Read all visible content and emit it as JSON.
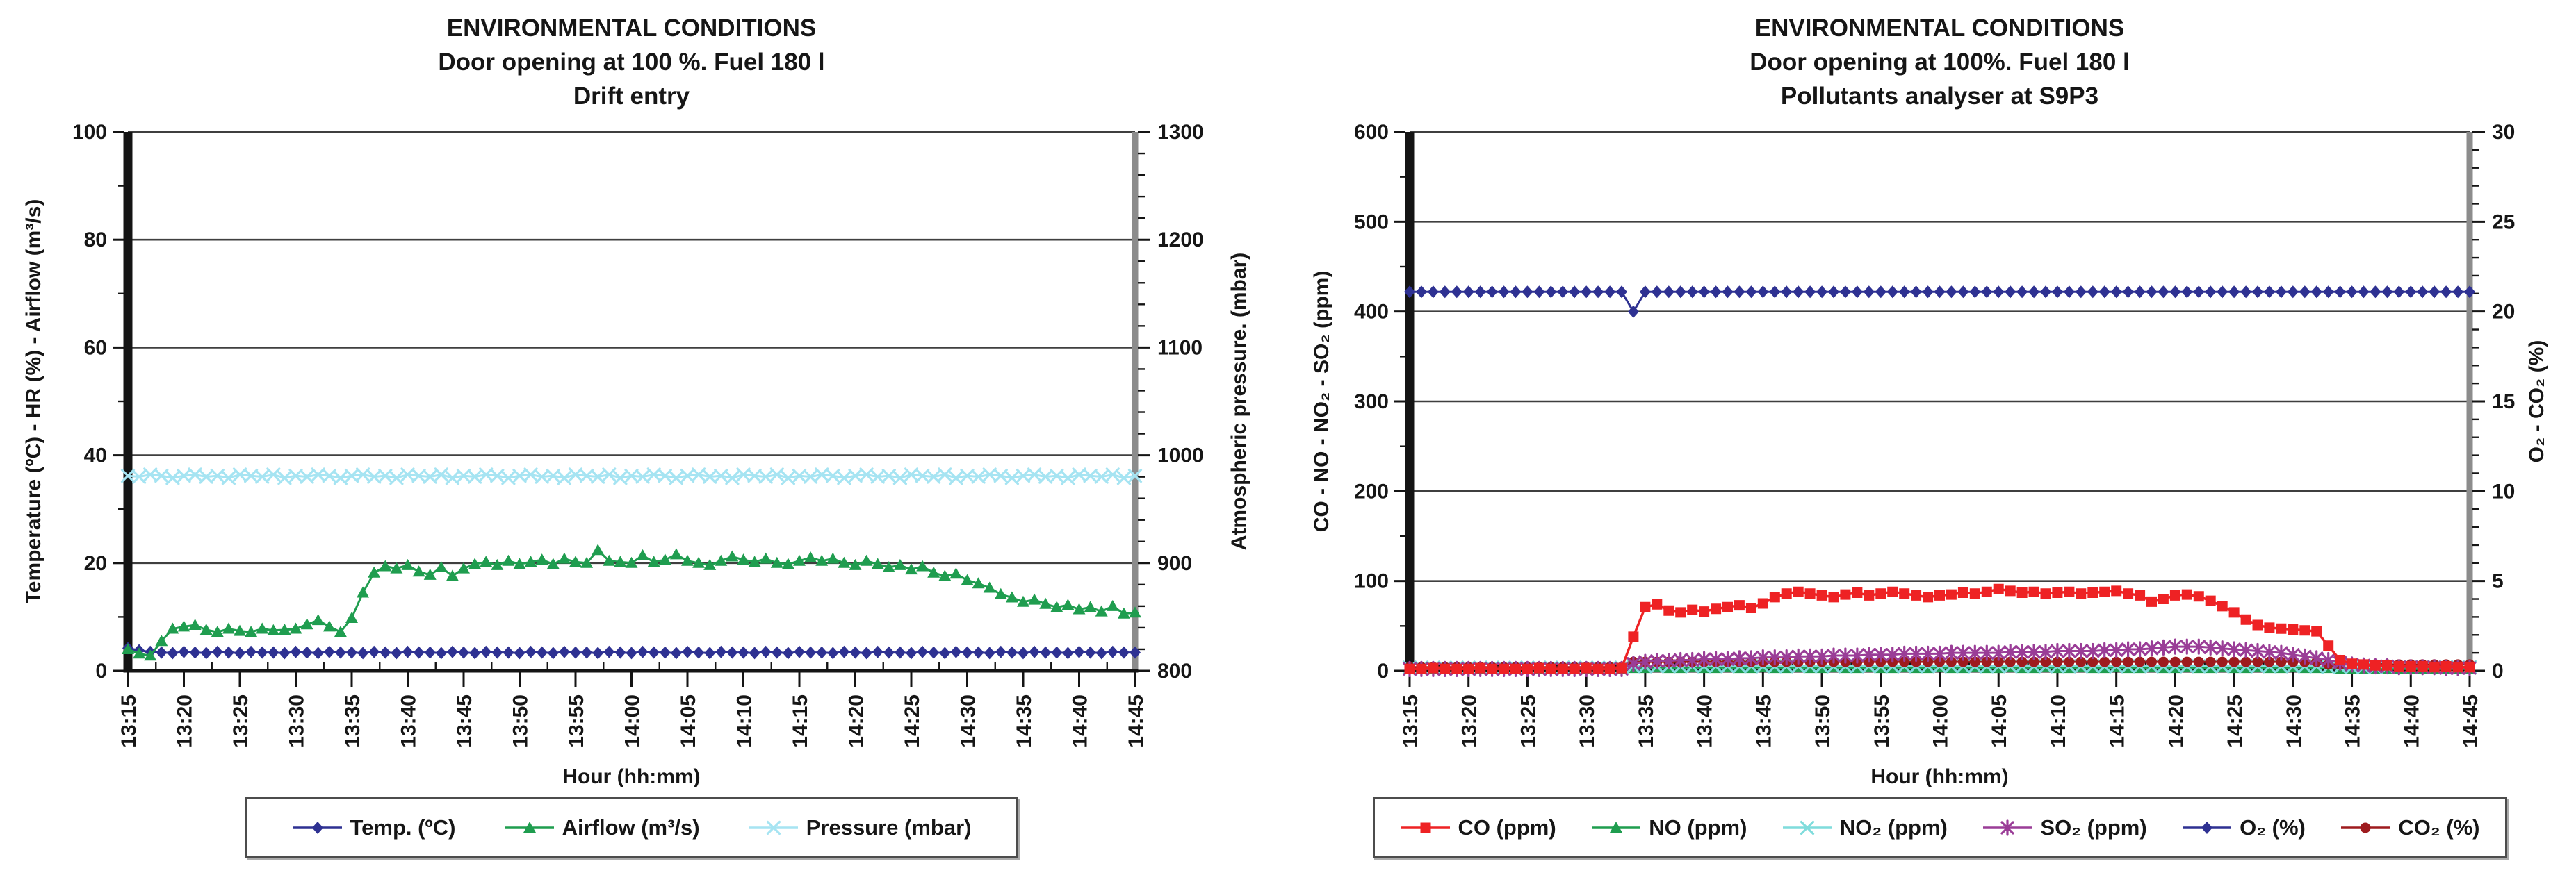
{
  "page": {
    "background": "#ffffff",
    "text_color": "#161616"
  },
  "chart_data": [
    {
      "type": "line",
      "title": "ENVIRONMENTAL CONDITIONS",
      "title_lines": [
        "ENVIRONMENTAL CONDITIONS",
        "Door opening at 100 %. Fuel 180 l",
        "Drift entry"
      ],
      "xlabel": "Hour (hh:mm)",
      "x_tick_labels": [
        "13:15",
        "13:20",
        "13:25",
        "13:30",
        "13:35",
        "13:40",
        "13:45",
        "13:50",
        "13:55",
        "14:00",
        "14:05",
        "14:10",
        "14:15",
        "14:20",
        "14:25",
        "14:30",
        "14:35",
        "14:40",
        "14:45"
      ],
      "grid": true,
      "legend_position": "bottom",
      "y_left": {
        "label": "Temperature (ºC) - HR (%) - Airflow (m³/s)",
        "min": 0,
        "max": 100,
        "major": 20,
        "minor": 10,
        "ticks": [
          "0",
          "20",
          "40",
          "60",
          "80",
          "100"
        ]
      },
      "y_right": {
        "label": "Atmospheric pressure. (mbar)",
        "min": 800,
        "max": 1300,
        "major": 100,
        "minor": 20,
        "ticks": [
          "800",
          "900",
          "1000",
          "1100",
          "1200",
          "1300"
        ]
      },
      "series": [
        {
          "name": "Temp. (ºC)",
          "axis": "left",
          "marker": "diamond",
          "color": "#2e3192",
          "values": [
            4.2,
            3.8,
            3.5,
            3.4,
            3.3,
            3.5,
            3.4,
            3.3,
            3.5,
            3.4,
            3.3,
            3.5,
            3.4,
            3.4,
            3.3,
            3.5,
            3.4,
            3.3,
            3.5,
            3.4,
            3.4,
            3.3,
            3.5,
            3.4,
            3.3,
            3.5,
            3.4,
            3.4,
            3.3,
            3.5,
            3.4,
            3.3,
            3.5,
            3.4,
            3.4,
            3.3,
            3.5,
            3.4,
            3.3,
            3.5,
            3.4,
            3.4,
            3.3,
            3.5,
            3.4,
            3.3,
            3.5,
            3.4,
            3.4,
            3.3,
            3.5,
            3.4,
            3.3,
            3.5,
            3.4,
            3.4,
            3.3,
            3.5,
            3.4,
            3.3,
            3.5,
            3.4,
            3.4,
            3.3,
            3.5,
            3.4,
            3.3,
            3.5,
            3.4,
            3.4,
            3.3,
            3.5,
            3.4,
            3.3,
            3.5,
            3.4,
            3.4,
            3.3,
            3.5,
            3.4,
            3.3,
            3.5,
            3.4,
            3.4,
            3.3,
            3.5,
            3.4,
            3.3,
            3.5,
            3.4,
            3.4
          ]
        },
        {
          "name": "Airflow (m³/s)",
          "axis": "left",
          "marker": "triangle",
          "color": "#1f9d4f",
          "values": [
            4.0,
            3.2,
            2.8,
            5.5,
            7.8,
            8.2,
            8.5,
            7.6,
            7.2,
            7.8,
            7.4,
            7.2,
            7.8,
            7.5,
            7.6,
            7.8,
            8.6,
            9.4,
            8.2,
            7.2,
            9.8,
            14.5,
            18.2,
            19.4,
            19.0,
            19.6,
            18.4,
            17.8,
            19.2,
            17.6,
            19.0,
            19.8,
            20.2,
            19.6,
            20.4,
            19.8,
            20.2,
            20.6,
            19.8,
            20.8,
            20.2,
            20.0,
            22.4,
            20.4,
            20.2,
            20.0,
            21.4,
            20.2,
            20.6,
            21.6,
            20.4,
            20.0,
            19.6,
            20.4,
            21.2,
            20.6,
            20.2,
            20.8,
            20.0,
            19.8,
            20.4,
            21.0,
            20.4,
            20.8,
            20.0,
            19.6,
            20.4,
            19.8,
            19.2,
            19.6,
            18.8,
            19.4,
            18.2,
            17.6,
            18.0,
            16.8,
            16.2,
            15.4,
            14.2,
            13.6,
            12.8,
            13.2,
            12.4,
            11.8,
            12.2,
            11.4,
            11.8,
            11.0,
            12.0,
            10.6,
            10.8
          ]
        },
        {
          "name": "Pressure (mbar)",
          "axis": "right",
          "marker": "x",
          "color": "#a6e4f2",
          "values": [
            981,
            980,
            982,
            981,
            979,
            981,
            982,
            980,
            981,
            979,
            982,
            981,
            980,
            982,
            979,
            981,
            980,
            982,
            981,
            979,
            981,
            982,
            980,
            981,
            979,
            982,
            981,
            980,
            982,
            979,
            981,
            980,
            982,
            981,
            979,
            981,
            982,
            980,
            981,
            979,
            982,
            981,
            980,
            982,
            979,
            981,
            980,
            982,
            981,
            979,
            981,
            982,
            980,
            981,
            979,
            982,
            981,
            980,
            982,
            979,
            981,
            980,
            982,
            981,
            979,
            981,
            982,
            980,
            981,
            979,
            982,
            981,
            980,
            982,
            979,
            981,
            980,
            982,
            981,
            979,
            981,
            982,
            980,
            981,
            979,
            982,
            981,
            980,
            982,
            979,
            981
          ]
        }
      ]
    },
    {
      "type": "line",
      "title": "ENVIRONMENTAL CONDITIONS",
      "title_lines": [
        "ENVIRONMENTAL CONDITIONS",
        "Door opening at 100%. Fuel 180 l",
        "Pollutants analyser at S9P3"
      ],
      "xlabel": "Hour (hh:mm)",
      "x_tick_labels": [
        "13:15",
        "13:20",
        "13:25",
        "13:30",
        "13:35",
        "13:40",
        "13:45",
        "13:50",
        "13:55",
        "14:00",
        "14:05",
        "14:10",
        "14:15",
        "14:20",
        "14:25",
        "14:30",
        "14:35",
        "14:40",
        "14:45"
      ],
      "grid": true,
      "legend_position": "bottom",
      "y_left": {
        "label": "CO - NO - NO₂ - SO₂ (ppm)",
        "min": 0,
        "max": 600,
        "major": 100,
        "minor": 50,
        "ticks": [
          "0",
          "100",
          "200",
          "300",
          "400",
          "500",
          "600"
        ]
      },
      "y_right": {
        "label": "O₂ - CO₂ (%)",
        "min": 0,
        "max": 30,
        "major": 5,
        "minor": 1,
        "ticks": [
          "0",
          "5",
          "10",
          "15",
          "20",
          "25",
          "30"
        ]
      },
      "series": [
        {
          "name": "CO (ppm)",
          "axis": "left",
          "marker": "square",
          "color": "#ee2224",
          "values": [
            2,
            2,
            3,
            2,
            2,
            2,
            3,
            2,
            2,
            2,
            2,
            3,
            2,
            2,
            2,
            3,
            2,
            2,
            3,
            38,
            71,
            74,
            67,
            65,
            68,
            66,
            69,
            71,
            73,
            70,
            75,
            82,
            86,
            88,
            86,
            84,
            82,
            85,
            87,
            84,
            86,
            88,
            86,
            84,
            82,
            84,
            85,
            87,
            86,
            88,
            91,
            89,
            87,
            88,
            86,
            87,
            88,
            86,
            87,
            88,
            89,
            86,
            84,
            77,
            80,
            84,
            85,
            83,
            78,
            72,
            65,
            57,
            51,
            48,
            47,
            46,
            45,
            44,
            28,
            12,
            8,
            7,
            6,
            6,
            5,
            5,
            5,
            4,
            5,
            4,
            4
          ]
        },
        {
          "name": "NO (ppm)",
          "axis": "left",
          "marker": "triangle",
          "color": "#1f9d4f",
          "values": [
            2,
            2,
            2,
            2,
            2,
            2,
            2,
            2,
            2,
            2,
            2,
            2,
            2,
            2,
            2,
            2,
            2,
            2,
            2,
            3,
            3,
            4,
            3,
            3,
            4,
            3,
            3,
            4,
            3,
            3,
            4,
            3,
            3,
            4,
            3,
            3,
            4,
            3,
            3,
            4,
            3,
            3,
            4,
            3,
            3,
            4,
            3,
            3,
            4,
            3,
            3,
            4,
            3,
            3,
            4,
            3,
            3,
            4,
            3,
            3,
            4,
            3,
            3,
            4,
            3,
            3,
            4,
            3,
            3,
            4,
            3,
            3,
            4,
            3,
            3,
            4,
            3,
            3,
            3,
            2,
            2,
            2,
            2,
            2,
            2,
            2,
            2,
            2,
            2,
            2,
            2
          ]
        },
        {
          "name": "NO₂ (ppm)",
          "axis": "left",
          "marker": "x",
          "color": "#7fdcdc",
          "values": [
            3.5,
            3.5,
            3.5,
            3.5,
            3.5,
            3.5,
            3.5,
            3.5,
            3.5,
            3.5,
            3.5,
            3.5,
            3.5,
            3.5,
            3.5,
            3.5,
            3.5,
            3.5,
            3.5,
            5,
            5,
            5,
            5,
            5,
            5,
            5,
            5,
            5,
            5,
            5,
            5,
            5,
            5,
            5,
            5,
            5,
            5,
            5,
            5,
            5,
            5,
            5,
            5,
            5,
            5,
            5,
            5,
            5,
            5,
            5,
            5,
            5,
            5,
            5,
            5,
            5,
            5,
            5,
            5,
            5,
            5,
            5,
            5,
            5,
            5,
            5,
            5,
            5,
            5,
            5,
            5,
            5,
            5,
            5,
            5,
            5,
            5,
            5,
            4,
            4,
            4,
            4,
            4,
            4,
            4,
            4,
            4,
            4,
            4,
            4,
            4
          ]
        },
        {
          "name": "SO₂ (ppm)",
          "axis": "left",
          "marker": "star",
          "color": "#9a3d97",
          "values": [
            2,
            2,
            2,
            2,
            2,
            2,
            2,
            2,
            2,
            2,
            2,
            2,
            2,
            2,
            2,
            2,
            2,
            2,
            2,
            8,
            10,
            11,
            11,
            12,
            12,
            13,
            13,
            13,
            14,
            14,
            15,
            15,
            15,
            16,
            16,
            16,
            17,
            17,
            17,
            18,
            18,
            18,
            19,
            19,
            19,
            19,
            20,
            20,
            20,
            20,
            20,
            21,
            21,
            21,
            21,
            22,
            22,
            22,
            22,
            23,
            23,
            24,
            24,
            25,
            26,
            27,
            27,
            27,
            26,
            25,
            24,
            23,
            22,
            21,
            20,
            18,
            16,
            14,
            12,
            9,
            7,
            6,
            5,
            5,
            4,
            4,
            4,
            4,
            3,
            3,
            3
          ]
        },
        {
          "name": "O₂ (%)",
          "axis": "right",
          "marker": "diamond",
          "color": "#2e3192",
          "values": [
            21.1,
            21.1,
            21.1,
            21.1,
            21.1,
            21.1,
            21.1,
            21.1,
            21.1,
            21.1,
            21.1,
            21.1,
            21.1,
            21.1,
            21.1,
            21.1,
            21.1,
            21.1,
            21.1,
            20.0,
            21.1,
            21.1,
            21.1,
            21.1,
            21.1,
            21.1,
            21.1,
            21.1,
            21.1,
            21.1,
            21.1,
            21.1,
            21.1,
            21.1,
            21.1,
            21.1,
            21.1,
            21.1,
            21.1,
            21.1,
            21.1,
            21.1,
            21.1,
            21.1,
            21.1,
            21.1,
            21.1,
            21.1,
            21.1,
            21.1,
            21.1,
            21.1,
            21.1,
            21.1,
            21.1,
            21.1,
            21.1,
            21.1,
            21.1,
            21.1,
            21.1,
            21.1,
            21.1,
            21.1,
            21.1,
            21.1,
            21.1,
            21.1,
            21.1,
            21.1,
            21.1,
            21.1,
            21.1,
            21.1,
            21.1,
            21.1,
            21.1,
            21.1,
            21.1,
            21.1,
            21.1,
            21.1,
            21.1,
            21.1,
            21.1,
            21.1,
            21.1,
            21.1,
            21.1,
            21.1,
            21.1
          ]
        },
        {
          "name": "CO₂ (%)",
          "axis": "right",
          "marker": "circle",
          "color": "#9e1b1e",
          "values": [
            0.2,
            0.2,
            0.2,
            0.2,
            0.2,
            0.2,
            0.2,
            0.2,
            0.2,
            0.2,
            0.2,
            0.2,
            0.2,
            0.2,
            0.2,
            0.2,
            0.2,
            0.2,
            0.2,
            0.5,
            0.5,
            0.5,
            0.5,
            0.5,
            0.5,
            0.5,
            0.5,
            0.5,
            0.5,
            0.5,
            0.5,
            0.5,
            0.5,
            0.5,
            0.5,
            0.5,
            0.5,
            0.5,
            0.5,
            0.5,
            0.5,
            0.5,
            0.5,
            0.5,
            0.5,
            0.5,
            0.5,
            0.5,
            0.5,
            0.5,
            0.5,
            0.5,
            0.5,
            0.5,
            0.5,
            0.5,
            0.5,
            0.5,
            0.5,
            0.5,
            0.5,
            0.5,
            0.5,
            0.5,
            0.5,
            0.5,
            0.5,
            0.5,
            0.5,
            0.5,
            0.5,
            0.5,
            0.5,
            0.5,
            0.5,
            0.5,
            0.5,
            0.5,
            0.35,
            0.35,
            0.35,
            0.35,
            0.35,
            0.35,
            0.35,
            0.35,
            0.35,
            0.35,
            0.35,
            0.35,
            0.35
          ]
        }
      ]
    }
  ]
}
